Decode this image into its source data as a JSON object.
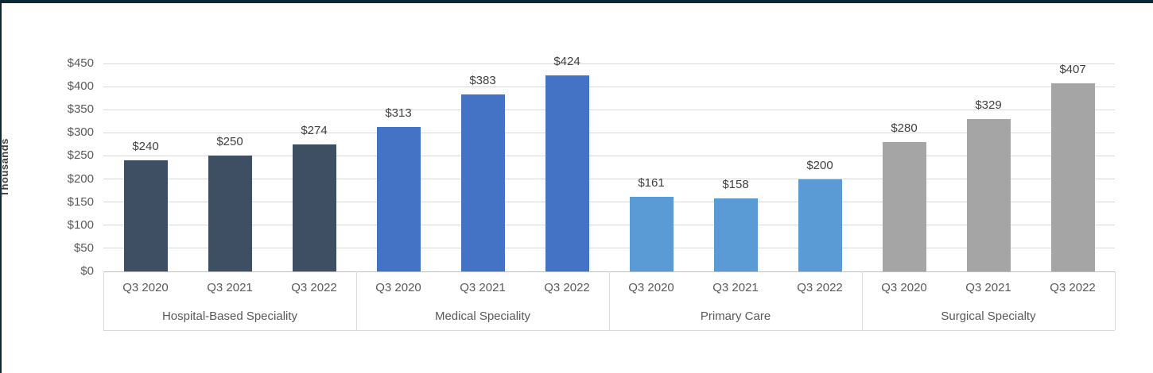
{
  "frame": {
    "background": "#ffffff",
    "top_border_color": "#0d2935",
    "left_border_color": "#0d2935"
  },
  "chart_data": {
    "type": "bar",
    "title": "",
    "xlabel": "",
    "ylabel": "Thousands",
    "ylim": [
      0,
      450
    ],
    "yticks": [
      0,
      50,
      100,
      150,
      200,
      250,
      300,
      350,
      400,
      450
    ],
    "ytick_labels": [
      "$0",
      "$50",
      "$100",
      "$150",
      "$200",
      "$250",
      "$300",
      "$350",
      "$400",
      "$450"
    ],
    "grid": true,
    "legend_position": "none",
    "categories": [
      "Q3 2020",
      "Q3 2021",
      "Q3 2022"
    ],
    "groups": [
      {
        "label": "Hospital-Based Speciality",
        "color": "#3e4e63",
        "categories": [
          "Q3 2020",
          "Q3 2021",
          "Q3 2022"
        ],
        "values": [
          240,
          250,
          274
        ],
        "value_labels": [
          "$240",
          "$250",
          "$274"
        ]
      },
      {
        "label": "Medical Speciality",
        "color": "#4472c4",
        "categories": [
          "Q3 2020",
          "Q3 2021",
          "Q3 2022"
        ],
        "values": [
          313,
          383,
          424
        ],
        "value_labels": [
          "$313",
          "$383",
          "$424"
        ]
      },
      {
        "label": "Primary Care",
        "color": "#5b9bd5",
        "categories": [
          "Q3 2020",
          "Q3 2021",
          "Q3 2022"
        ],
        "values": [
          161,
          158,
          200
        ],
        "value_labels": [
          "$161",
          "$158",
          "$200"
        ]
      },
      {
        "label": "Surgical Specialty",
        "color": "#a5a5a5",
        "categories": [
          "Q3 2020",
          "Q3 2021",
          "Q3 2022"
        ],
        "values": [
          280,
          329,
          407
        ],
        "value_labels": [
          "$280",
          "$329",
          "$407"
        ]
      }
    ]
  }
}
